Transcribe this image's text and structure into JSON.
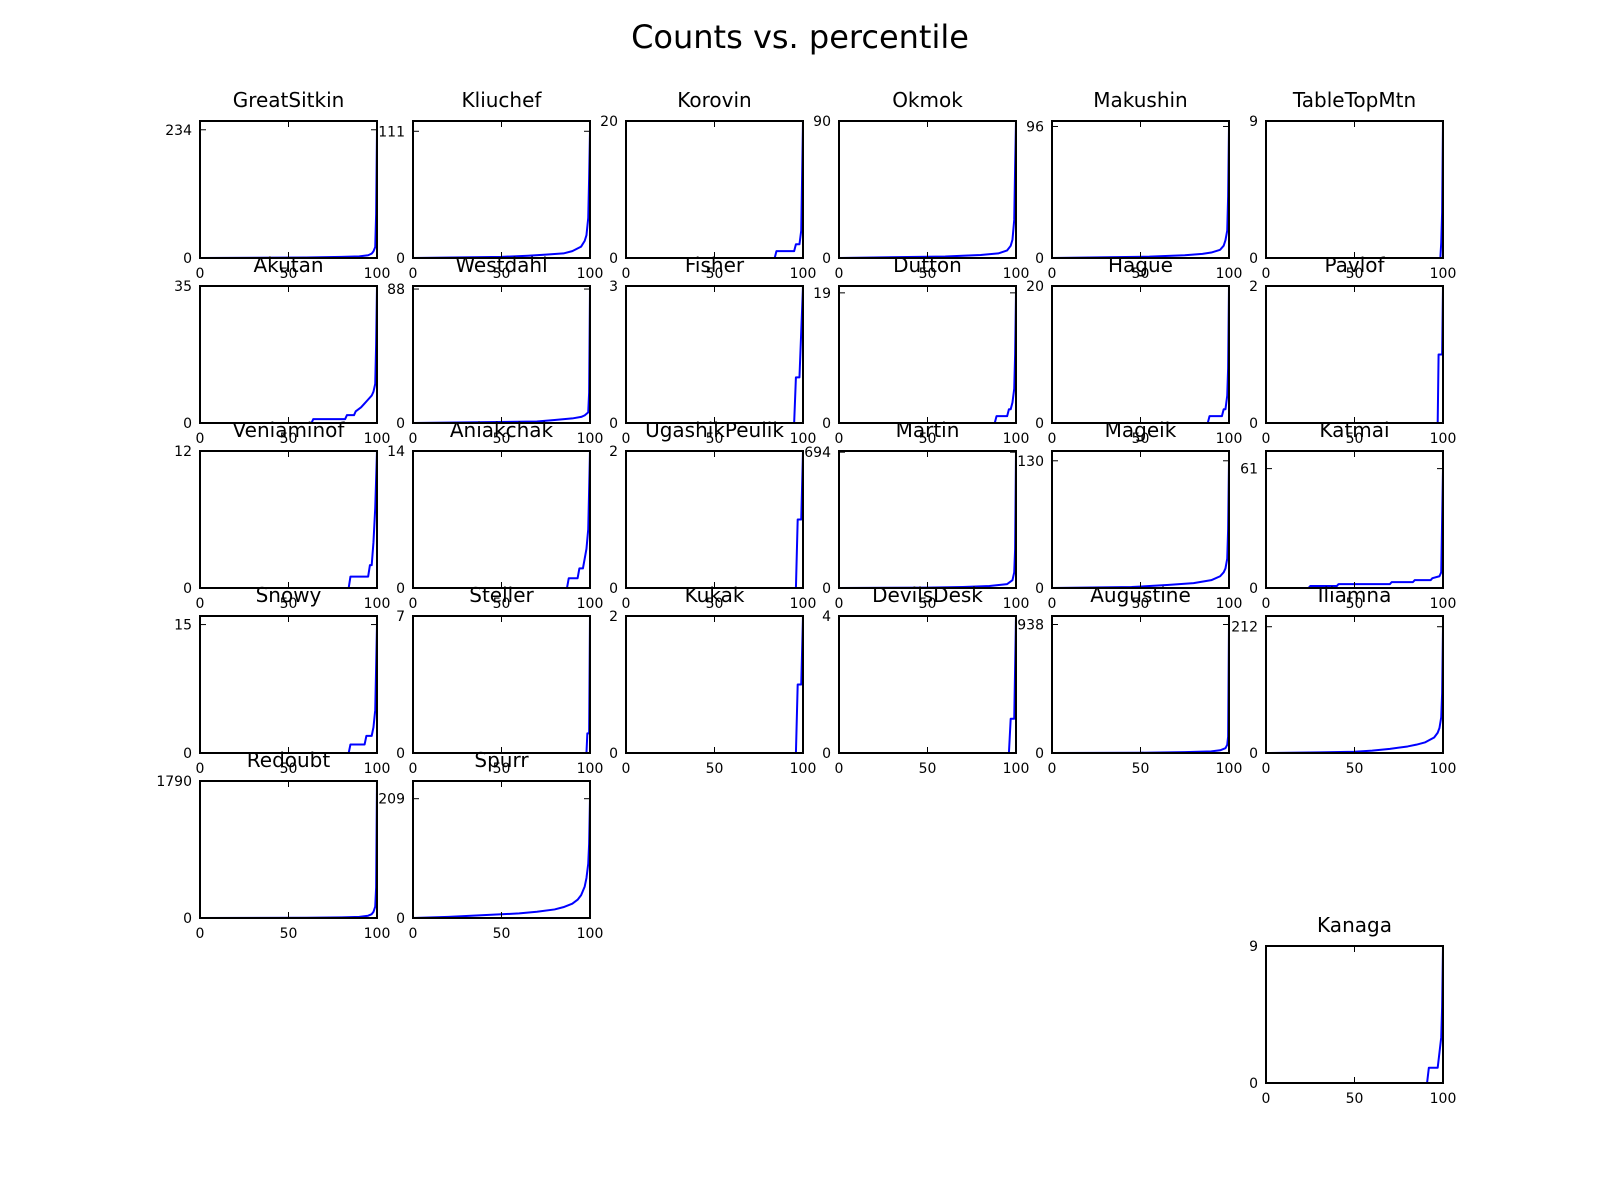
{
  "figure": {
    "title": "Counts vs. percentile"
  },
  "style": {
    "line_color": "#0000ff",
    "axes_color": "#000000",
    "background": "#ffffff"
  },
  "chart_data": [
    {
      "type": "line",
      "title": "GreatSitkin",
      "xlim": [
        0,
        100
      ],
      "xticks": [
        0,
        50,
        100
      ],
      "ylim": [
        0,
        250
      ],
      "yticks": [
        0,
        234
      ],
      "x": [
        0,
        60,
        80,
        90,
        95,
        97,
        98,
        99,
        99.5,
        100
      ],
      "y": [
        0,
        1,
        2,
        3,
        5,
        8,
        12,
        20,
        80,
        234
      ]
    },
    {
      "type": "line",
      "title": "Kliuchef",
      "xlim": [
        0,
        100
      ],
      "xticks": [
        0,
        50,
        100
      ],
      "ylim": [
        0,
        120
      ],
      "yticks": [
        0,
        111
      ],
      "x": [
        0,
        50,
        65,
        75,
        85,
        90,
        95,
        97,
        98,
        99,
        99.5,
        100
      ],
      "y": [
        0,
        1,
        2,
        3,
        4,
        6,
        10,
        15,
        20,
        35,
        70,
        111
      ]
    },
    {
      "type": "line",
      "title": "Korovin",
      "xlim": [
        0,
        100
      ],
      "xticks": [
        0,
        50,
        100
      ],
      "ylim": [
        0,
        20
      ],
      "yticks": [
        0,
        20
      ],
      "x": [
        0,
        84,
        85,
        95,
        96,
        98,
        99,
        100
      ],
      "y": [
        0,
        0,
        1,
        1,
        2,
        2,
        4,
        20
      ]
    },
    {
      "type": "line",
      "title": "Okmok",
      "xlim": [
        0,
        100
      ],
      "xticks": [
        0,
        50,
        100
      ],
      "ylim": [
        0,
        90
      ],
      "yticks": [
        0,
        90
      ],
      "x": [
        0,
        60,
        80,
        90,
        95,
        97,
        98,
        99,
        99.5,
        100
      ],
      "y": [
        0,
        1,
        2,
        3,
        5,
        8,
        12,
        25,
        60,
        90
      ]
    },
    {
      "type": "line",
      "title": "Makushin",
      "xlim": [
        0,
        100
      ],
      "xticks": [
        0,
        50,
        100
      ],
      "ylim": [
        0,
        100
      ],
      "yticks": [
        0,
        96
      ],
      "x": [
        0,
        55,
        75,
        85,
        90,
        95,
        97,
        98,
        99,
        99.5,
        100
      ],
      "y": [
        0,
        1,
        2,
        3,
        4,
        6,
        9,
        13,
        20,
        45,
        96
      ]
    },
    {
      "type": "line",
      "title": "TableTopMtn",
      "xlim": [
        0,
        100
      ],
      "xticks": [
        0,
        50,
        100
      ],
      "ylim": [
        0,
        9
      ],
      "yticks": [
        0,
        9
      ],
      "x": [
        0,
        98.5,
        99,
        99.5,
        100
      ],
      "y": [
        0,
        0,
        1,
        3,
        9
      ]
    },
    {
      "type": "line",
      "title": "Akutan",
      "xlim": [
        0,
        100
      ],
      "xticks": [
        0,
        50,
        100
      ],
      "ylim": [
        0,
        35
      ],
      "yticks": [
        0,
        35
      ],
      "x": [
        0,
        63,
        64,
        82,
        83,
        87,
        88,
        91,
        93,
        95,
        97,
        98,
        99,
        99.5,
        100
      ],
      "y": [
        0,
        0,
        1,
        1,
        2,
        2,
        3,
        4,
        5,
        6,
        7,
        8,
        10,
        20,
        35
      ]
    },
    {
      "type": "line",
      "title": "Westdahl",
      "xlim": [
        0,
        100
      ],
      "xticks": [
        0,
        50,
        100
      ],
      "ylim": [
        0,
        90
      ],
      "yticks": [
        0,
        88
      ],
      "x": [
        0,
        70,
        80,
        90,
        95,
        97,
        99,
        99.5,
        100
      ],
      "y": [
        0,
        1,
        2,
        3,
        4,
        5,
        7,
        20,
        88
      ]
    },
    {
      "type": "line",
      "title": "Fisher",
      "xlim": [
        0,
        100
      ],
      "xticks": [
        0,
        50,
        100
      ],
      "ylim": [
        0,
        3
      ],
      "yticks": [
        0,
        3
      ],
      "x": [
        0,
        95,
        96,
        98,
        99,
        100
      ],
      "y": [
        0,
        0,
        1,
        1,
        2,
        3
      ]
    },
    {
      "type": "line",
      "title": "Dutton",
      "xlim": [
        0,
        100
      ],
      "xticks": [
        0,
        50,
        100
      ],
      "ylim": [
        0,
        20
      ],
      "yticks": [
        0,
        19
      ],
      "x": [
        0,
        88,
        89,
        95,
        96,
        97,
        98,
        99,
        99.5,
        100
      ],
      "y": [
        0,
        0,
        1,
        1,
        2,
        2,
        3,
        5,
        10,
        19
      ]
    },
    {
      "type": "line",
      "title": "Hague",
      "xlim": [
        0,
        100
      ],
      "xticks": [
        0,
        50,
        100
      ],
      "ylim": [
        0,
        20
      ],
      "yticks": [
        0,
        20
      ],
      "x": [
        0,
        88,
        89,
        96,
        97,
        98,
        99,
        99.5,
        100
      ],
      "y": [
        0,
        0,
        1,
        1,
        2,
        2,
        4,
        8,
        20
      ]
    },
    {
      "type": "line",
      "title": "Pavlof",
      "xlim": [
        0,
        100
      ],
      "xticks": [
        0,
        50,
        100
      ],
      "ylim": [
        0,
        2
      ],
      "yticks": [
        0,
        2
      ],
      "x": [
        0,
        97,
        97.5,
        99.5,
        100
      ],
      "y": [
        0,
        0,
        1,
        1,
        2
      ]
    },
    {
      "type": "line",
      "title": "Veniaminof",
      "xlim": [
        0,
        100
      ],
      "xticks": [
        0,
        50,
        100
      ],
      "ylim": [
        0,
        12
      ],
      "yticks": [
        0,
        12
      ],
      "x": [
        0,
        84,
        85,
        95,
        96,
        97,
        98,
        99,
        100
      ],
      "y": [
        0,
        0,
        1,
        1,
        2,
        2,
        4,
        7,
        12
      ]
    },
    {
      "type": "line",
      "title": "Aniakchak",
      "xlim": [
        0,
        100
      ],
      "xticks": [
        0,
        50,
        100
      ],
      "ylim": [
        0,
        14
      ],
      "yticks": [
        0,
        14
      ],
      "x": [
        0,
        87,
        88,
        93,
        94,
        96,
        97,
        98,
        99,
        100
      ],
      "y": [
        0,
        0,
        1,
        1,
        2,
        2,
        3,
        4,
        6,
        14
      ]
    },
    {
      "type": "line",
      "title": "UgashikPeulik",
      "xlim": [
        0,
        100
      ],
      "xticks": [
        0,
        50,
        100
      ],
      "ylim": [
        0,
        2
      ],
      "yticks": [
        0,
        2
      ],
      "x": [
        0,
        96,
        97,
        99,
        100
      ],
      "y": [
        0,
        0,
        1,
        1,
        2
      ]
    },
    {
      "type": "line",
      "title": "Martin",
      "xlim": [
        0,
        100
      ],
      "xticks": [
        0,
        50,
        100
      ],
      "ylim": [
        0,
        700
      ],
      "yticks": [
        0,
        694
      ],
      "x": [
        0,
        50,
        70,
        85,
        95,
        98,
        99,
        99.5,
        100
      ],
      "y": [
        0,
        2,
        5,
        10,
        20,
        40,
        80,
        200,
        694
      ]
    },
    {
      "type": "line",
      "title": "Mageik",
      "xlim": [
        0,
        100
      ],
      "xticks": [
        0,
        50,
        100
      ],
      "ylim": [
        0,
        140
      ],
      "yticks": [
        0,
        130
      ],
      "x": [
        0,
        45,
        65,
        80,
        90,
        95,
        97,
        98,
        99,
        99.5,
        100
      ],
      "y": [
        0,
        1,
        3,
        5,
        8,
        12,
        16,
        20,
        30,
        60,
        130
      ]
    },
    {
      "type": "line",
      "title": "Katmai",
      "xlim": [
        0,
        100
      ],
      "xticks": [
        0,
        50,
        100
      ],
      "ylim": [
        0,
        70
      ],
      "yticks": [
        0,
        61
      ],
      "x": [
        0,
        24,
        25,
        40,
        41,
        70,
        71,
        83,
        84,
        93,
        94,
        98,
        99,
        100
      ],
      "y": [
        0,
        0,
        1,
        1,
        2,
        2,
        3,
        3,
        4,
        4,
        5,
        6,
        8,
        61
      ]
    },
    {
      "type": "line",
      "title": "Snowy",
      "xlim": [
        0,
        100
      ],
      "xticks": [
        0,
        50,
        100
      ],
      "ylim": [
        0,
        16
      ],
      "yticks": [
        0,
        15
      ],
      "x": [
        0,
        84,
        85,
        93,
        94,
        97,
        98,
        99,
        100
      ],
      "y": [
        0,
        0,
        1,
        1,
        2,
        2,
        3,
        5,
        15
      ]
    },
    {
      "type": "line",
      "title": "Steller",
      "xlim": [
        0,
        100
      ],
      "xticks": [
        0,
        50,
        100
      ],
      "ylim": [
        0,
        7
      ],
      "yticks": [
        0,
        7
      ],
      "x": [
        0,
        98,
        98.5,
        99.5,
        100
      ],
      "y": [
        0,
        0,
        1,
        1,
        7
      ]
    },
    {
      "type": "line",
      "title": "Kukak",
      "xlim": [
        0,
        100
      ],
      "xticks": [
        0,
        50,
        100
      ],
      "ylim": [
        0,
        2
      ],
      "yticks": [
        0,
        2
      ],
      "x": [
        0,
        96,
        97,
        99,
        100
      ],
      "y": [
        0,
        0,
        1,
        1,
        2
      ]
    },
    {
      "type": "line",
      "title": "DevilsDesk",
      "xlim": [
        0,
        100
      ],
      "xticks": [
        0,
        50,
        100
      ],
      "ylim": [
        0,
        4
      ],
      "yticks": [
        0,
        4
      ],
      "x": [
        0,
        96,
        97,
        99,
        100
      ],
      "y": [
        0,
        0,
        1,
        1,
        4
      ]
    },
    {
      "type": "line",
      "title": "Augustine",
      "xlim": [
        0,
        100
      ],
      "xticks": [
        0,
        50,
        100
      ],
      "ylim": [
        0,
        1000
      ],
      "yticks": [
        0,
        938
      ],
      "x": [
        0,
        50,
        75,
        90,
        95,
        98,
        99,
        99.5,
        100
      ],
      "y": [
        0,
        2,
        6,
        12,
        20,
        35,
        60,
        120,
        938
      ]
    },
    {
      "type": "line",
      "title": "Iliamna",
      "xlim": [
        0,
        100
      ],
      "xticks": [
        0,
        50,
        100
      ],
      "ylim": [
        0,
        230
      ],
      "yticks": [
        0,
        212
      ],
      "x": [
        0,
        30,
        50,
        60,
        70,
        80,
        85,
        90,
        95,
        97,
        98,
        99,
        99.5,
        100
      ],
      "y": [
        0,
        1,
        2,
        4,
        7,
        11,
        14,
        18,
        26,
        34,
        42,
        60,
        100,
        212
      ]
    },
    {
      "type": "line",
      "title": "Redoubt",
      "xlim": [
        0,
        100
      ],
      "xticks": [
        0,
        50,
        100
      ],
      "ylim": [
        0,
        1790
      ],
      "yticks": [
        0,
        1790
      ],
      "x": [
        0,
        60,
        80,
        90,
        95,
        97,
        98,
        99,
        99.5,
        100
      ],
      "y": [
        0,
        3,
        8,
        15,
        30,
        50,
        80,
        150,
        400,
        1790
      ]
    },
    {
      "type": "line",
      "title": "Spurr",
      "xlim": [
        0,
        100
      ],
      "xticks": [
        0,
        50,
        100
      ],
      "ylim": [
        0,
        240
      ],
      "yticks": [
        0,
        209
      ],
      "x": [
        0,
        20,
        40,
        60,
        70,
        80,
        85,
        90,
        93,
        95,
        97,
        98,
        99,
        99.5,
        100
      ],
      "y": [
        0,
        2,
        5,
        8,
        11,
        15,
        19,
        25,
        32,
        40,
        55,
        70,
        95,
        130,
        209
      ]
    },
    {
      "type": "line",
      "title": "Kanaga",
      "xlim": [
        0,
        100
      ],
      "xticks": [
        0,
        50,
        100
      ],
      "ylim": [
        0,
        9
      ],
      "yticks": [
        0,
        9
      ],
      "x": [
        0,
        91,
        92,
        97,
        98,
        99,
        99.5,
        100
      ],
      "y": [
        0,
        0,
        1,
        1,
        2,
        3,
        5,
        9
      ]
    }
  ]
}
